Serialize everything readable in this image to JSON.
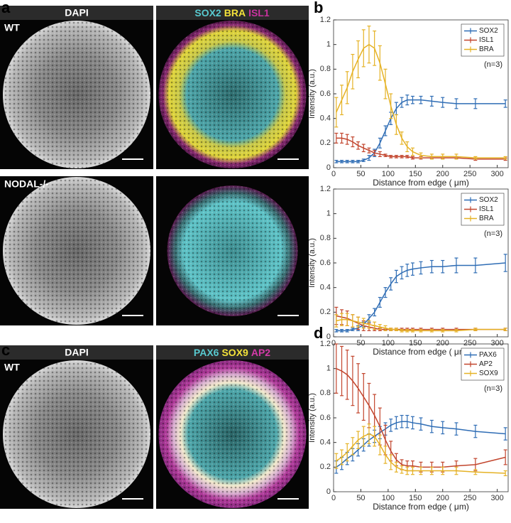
{
  "panels": {
    "labels": [
      "a",
      "b",
      "c",
      "d"
    ]
  },
  "images": [
    {
      "condition": "WT",
      "left": "DAPI",
      "right": [
        {
          "text": "SOX2",
          "color": "#58c9cf"
        },
        {
          "text": "BRA",
          "color": "#f3e23a"
        },
        {
          "text": "ISL1",
          "color": "#c8329e"
        }
      ]
    },
    {
      "condition": "NODAL-/-"
    },
    {
      "condition": "WT",
      "left": "DAPI",
      "right": [
        {
          "text": "PAX6",
          "color": "#58c9cf"
        },
        {
          "text": "SOX9",
          "color": "#f3e23a"
        },
        {
          "text": "AP2",
          "color": "#d43aa8"
        }
      ]
    }
  ],
  "chart_data": [
    {
      "type": "line",
      "xlabel": "Distance from edge ( μm)",
      "ylabel": "Intensity (a.u.)",
      "annotation": "(n=3)",
      "legend": "upper right",
      "x": [
        5,
        15,
        25,
        35,
        45,
        55,
        65,
        75,
        85,
        95,
        105,
        115,
        125,
        135,
        145,
        160,
        180,
        200,
        225,
        260,
        315
      ],
      "xlim": [
        0,
        320
      ],
      "xticks": [
        0,
        50,
        100,
        150,
        200,
        250,
        300
      ],
      "ylim": [
        0,
        1.2
      ],
      "yticks": [
        0,
        0.2,
        0.4,
        0.6,
        0.8,
        1,
        1.2
      ],
      "series": [
        {
          "name": "SOX2",
          "color": "#2f6db5",
          "values": [
            0.05,
            0.05,
            0.05,
            0.05,
            0.05,
            0.06,
            0.08,
            0.12,
            0.2,
            0.3,
            0.4,
            0.48,
            0.53,
            0.55,
            0.55,
            0.55,
            0.54,
            0.53,
            0.52,
            0.52,
            0.52
          ],
          "errors": [
            0.01,
            0.01,
            0.01,
            0.01,
            0.01,
            0.01,
            0.02,
            0.03,
            0.04,
            0.04,
            0.05,
            0.05,
            0.04,
            0.04,
            0.03,
            0.03,
            0.04,
            0.04,
            0.04,
            0.04,
            0.03
          ]
        },
        {
          "name": "ISL1",
          "color": "#c2452d",
          "values": [
            0.24,
            0.24,
            0.23,
            0.21,
            0.18,
            0.16,
            0.14,
            0.12,
            0.11,
            0.1,
            0.09,
            0.09,
            0.09,
            0.09,
            0.08,
            0.08,
            0.08,
            0.08,
            0.08,
            0.07,
            0.07
          ],
          "errors": [
            0.04,
            0.04,
            0.04,
            0.04,
            0.03,
            0.03,
            0.02,
            0.02,
            0.02,
            0.01,
            0.01,
            0.01,
            0.01,
            0.01,
            0.01,
            0.01,
            0.01,
            0.01,
            0.01,
            0.01,
            0.01
          ]
        },
        {
          "name": "BRA",
          "color": "#e5b225",
          "values": [
            0.45,
            0.55,
            0.65,
            0.78,
            0.88,
            0.97,
            1,
            0.97,
            0.85,
            0.68,
            0.5,
            0.35,
            0.24,
            0.17,
            0.13,
            0.1,
            0.09,
            0.09,
            0.09,
            0.08,
            0.08
          ],
          "errors": [
            0.12,
            0.12,
            0.13,
            0.14,
            0.15,
            0.15,
            0.15,
            0.14,
            0.14,
            0.12,
            0.1,
            0.08,
            0.05,
            0.04,
            0.03,
            0.02,
            0.02,
            0.02,
            0.02,
            0.01,
            0.01
          ]
        }
      ]
    },
    {
      "type": "line",
      "xlabel": "Distance from edge ( μm)",
      "ylabel": "Intensity (a.u.)",
      "annotation": "(n=3)",
      "legend": "upper right",
      "x": [
        5,
        15,
        25,
        35,
        45,
        55,
        65,
        75,
        85,
        95,
        105,
        115,
        125,
        135,
        145,
        160,
        180,
        200,
        225,
        260,
        315
      ],
      "xlim": [
        0,
        320
      ],
      "xticks": [
        0,
        50,
        100,
        150,
        200,
        250,
        300
      ],
      "ylim": [
        0,
        1.2
      ],
      "yticks": [
        0,
        0.2,
        0.4,
        0.6,
        0.8,
        1,
        1.2
      ],
      "series": [
        {
          "name": "SOX2",
          "color": "#2f6db5",
          "values": [
            0.05,
            0.05,
            0.05,
            0.06,
            0.07,
            0.1,
            0.15,
            0.2,
            0.28,
            0.36,
            0.43,
            0.49,
            0.52,
            0.54,
            0.55,
            0.56,
            0.57,
            0.57,
            0.58,
            0.58,
            0.6
          ],
          "errors": [
            0.01,
            0.01,
            0.01,
            0.01,
            0.02,
            0.02,
            0.03,
            0.03,
            0.04,
            0.04,
            0.05,
            0.05,
            0.05,
            0.05,
            0.05,
            0.05,
            0.05,
            0.05,
            0.06,
            0.06,
            0.07
          ]
        },
        {
          "name": "ISL1",
          "color": "#c2452d",
          "values": [
            0.17,
            0.16,
            0.15,
            0.13,
            0.11,
            0.09,
            0.08,
            0.07,
            0.06,
            0.06,
            0.06,
            0.06,
            0.06,
            0.06,
            0.06,
            0.06,
            0.06,
            0.06,
            0.06,
            0.06,
            0.06
          ],
          "errors": [
            0.07,
            0.06,
            0.06,
            0.05,
            0.05,
            0.04,
            0.03,
            0.02,
            0.01,
            0.01,
            0.01,
            0.01,
            0.01,
            0.01,
            0.01,
            0.01,
            0.01,
            0.01,
            0.01,
            0.01,
            0.01
          ]
        },
        {
          "name": "BRA",
          "color": "#e5b225",
          "values": [
            0.13,
            0.14,
            0.14,
            0.13,
            0.12,
            0.11,
            0.1,
            0.09,
            0.08,
            0.07,
            0.06,
            0.06,
            0.05,
            0.05,
            0.05,
            0.05,
            0.05,
            0.05,
            0.05,
            0.06,
            0.06
          ],
          "errors": [
            0.05,
            0.05,
            0.05,
            0.05,
            0.04,
            0.04,
            0.03,
            0.03,
            0.02,
            0.02,
            0.01,
            0.01,
            0.01,
            0.01,
            0.01,
            0.01,
            0.01,
            0.01,
            0.01,
            0.01,
            0.01
          ]
        }
      ]
    },
    {
      "type": "line",
      "xlabel": "Distance from edge ( μm)",
      "ylabel": "Intensity (a.u.)",
      "annotation": "(n=3)",
      "legend": "upper right",
      "x": [
        5,
        15,
        25,
        35,
        45,
        55,
        65,
        75,
        85,
        95,
        105,
        115,
        125,
        135,
        145,
        160,
        180,
        200,
        225,
        260,
        315
      ],
      "xlim": [
        0,
        320
      ],
      "xticks": [
        0,
        50,
        100,
        150,
        200,
        250,
        300
      ],
      "ylim": [
        0,
        1.2
      ],
      "yticks": [
        0,
        0.2,
        0.4,
        0.6,
        0.8,
        1,
        1.2
      ],
      "series": [
        {
          "name": "PAX6",
          "color": "#2f6db5",
          "values": [
            0.2,
            0.23,
            0.27,
            0.3,
            0.34,
            0.38,
            0.42,
            0.45,
            0.48,
            0.51,
            0.54,
            0.56,
            0.57,
            0.57,
            0.56,
            0.55,
            0.53,
            0.52,
            0.51,
            0.49,
            0.47
          ],
          "errors": [
            0.05,
            0.05,
            0.05,
            0.05,
            0.05,
            0.05,
            0.05,
            0.05,
            0.05,
            0.05,
            0.05,
            0.05,
            0.05,
            0.05,
            0.05,
            0.05,
            0.05,
            0.05,
            0.05,
            0.05,
            0.05
          ]
        },
        {
          "name": "AP2",
          "color": "#c2452d",
          "values": [
            1,
            0.98,
            0.95,
            0.9,
            0.84,
            0.77,
            0.7,
            0.62,
            0.53,
            0.42,
            0.33,
            0.26,
            0.22,
            0.21,
            0.21,
            0.2,
            0.2,
            0.2,
            0.21,
            0.22,
            0.28
          ],
          "errors": [
            0.2,
            0.2,
            0.2,
            0.2,
            0.2,
            0.19,
            0.18,
            0.17,
            0.15,
            0.12,
            0.08,
            0.05,
            0.04,
            0.04,
            0.04,
            0.04,
            0.04,
            0.04,
            0.04,
            0.05,
            0.06
          ]
        },
        {
          "name": "SOX9",
          "color": "#e5b225",
          "values": [
            0.25,
            0.28,
            0.32,
            0.37,
            0.42,
            0.45,
            0.47,
            0.45,
            0.38,
            0.3,
            0.24,
            0.2,
            0.18,
            0.17,
            0.17,
            0.17,
            0.17,
            0.17,
            0.17,
            0.16,
            0.15
          ],
          "errors": [
            0.06,
            0.06,
            0.07,
            0.07,
            0.07,
            0.08,
            0.08,
            0.08,
            0.08,
            0.07,
            0.06,
            0.04,
            0.03,
            0.03,
            0.03,
            0.03,
            0.03,
            0.03,
            0.03,
            0.02,
            0.02
          ]
        }
      ]
    }
  ]
}
